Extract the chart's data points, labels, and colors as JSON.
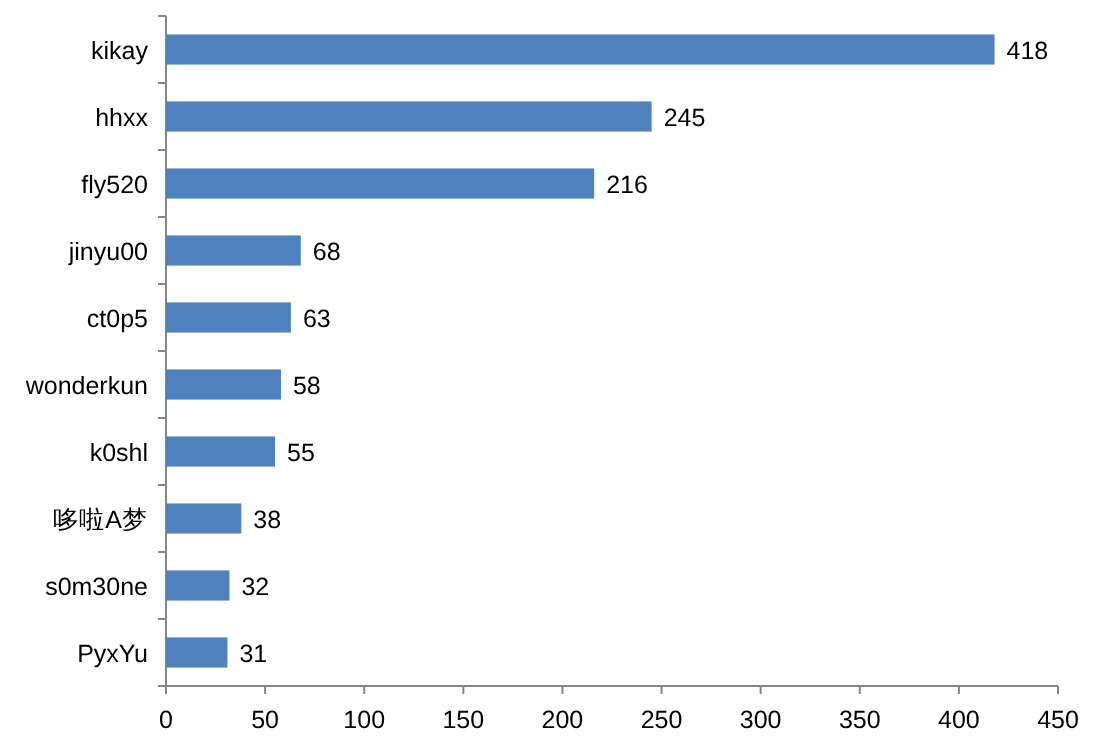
{
  "chart_data": {
    "type": "bar",
    "orientation": "horizontal",
    "categories": [
      "kikay",
      "hhxx",
      "fly520",
      "jinyu00",
      "ct0p5",
      "wonderkun",
      "k0shl",
      "哆啦A梦",
      "s0m30ne",
      "PyxYu"
    ],
    "values": [
      418,
      245,
      216,
      68,
      63,
      58,
      55,
      38,
      32,
      31
    ],
    "color": "#4f81bd",
    "xlim": [
      0,
      450
    ],
    "xticks": [
      0,
      50,
      100,
      150,
      200,
      250,
      300,
      350,
      400,
      450
    ],
    "data_labels": true
  }
}
